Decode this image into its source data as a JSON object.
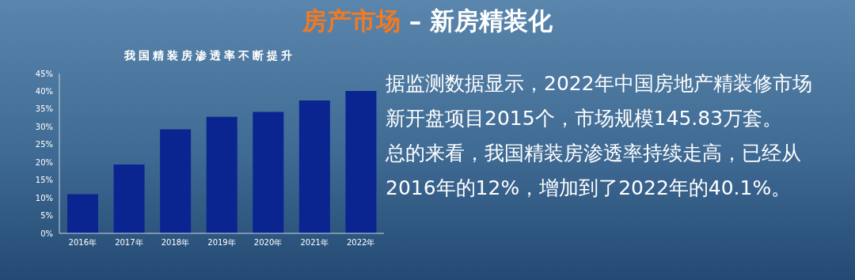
{
  "chart_data": {
    "type": "bar",
    "title": "房产市场 – 新房精装化",
    "subtitle": "我国精装房渗透率不断提升",
    "categories": [
      "2016年",
      "2017年",
      "2018年",
      "2019年",
      "2020年",
      "2021年",
      "2022年"
    ],
    "values": [
      11,
      19.4,
      29.3,
      32.8,
      34.2,
      37.4,
      40.1
    ],
    "color": "#0a2590",
    "ylim": [
      0,
      45
    ],
    "yticks": [
      {
        "value": 0,
        "label": "0%"
      },
      {
        "value": 5,
        "label": "5%"
      },
      {
        "value": 10,
        "label": "10%"
      },
      {
        "value": 15,
        "label": "15%"
      },
      {
        "value": 20,
        "label": "20%"
      },
      {
        "value": 25,
        "label": "25%"
      },
      {
        "value": 30,
        "label": "30%"
      },
      {
        "value": 35,
        "label": "35%"
      },
      {
        "value": 40,
        "label": "40%"
      },
      {
        "value": 45,
        "label": "45%"
      }
    ],
    "grid": false,
    "legend": false,
    "annotations": [
      "据监测数据显示，2022年中国房地产精装修市场新开盘项目2015个，市场规模145.83万套。",
      "总的来看，我国精装房渗透率持续走高，已经从2016年的12%，增加到了2022年的40.1%。"
    ]
  }
}
